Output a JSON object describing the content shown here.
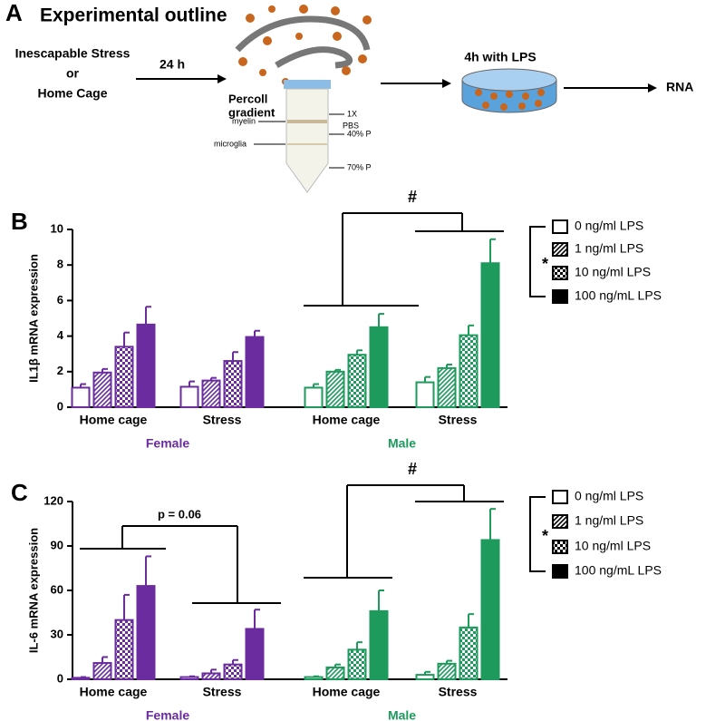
{
  "outline": {
    "panel_label": "A",
    "title": "Experimental outline",
    "condition_1": "Inescapable Stress",
    "or": "or",
    "condition_2": "Home Cage",
    "delay": "24 h",
    "percoll_1": "Percoll",
    "percoll_2": "gradient",
    "myelin": "myelin",
    "microglia": "microglia",
    "layer_1a": "1X",
    "layer_1b": "PBS",
    "layer_2": "40% P",
    "layer_3": "70% P",
    "incubation": "4h with LPS",
    "output": "RNA"
  },
  "chart_data": [
    {
      "type": "bar",
      "panel_label": "B",
      "ylabel": "IL1β mRNA expression",
      "ylim": [
        0,
        10
      ],
      "yticks": [
        0,
        2,
        4,
        6,
        8,
        10
      ],
      "categories": [
        "Home cage",
        "Stress",
        "Home cage",
        "Stress"
      ],
      "sexes": [
        "Female",
        "Male"
      ],
      "sex_colors": [
        "#6a2c9e",
        "#1d9a5c"
      ],
      "legend_color": "#000000",
      "series": [
        {
          "name": "0 ng/ml LPS",
          "pattern": "open",
          "values": [
            1.1,
            1.15,
            1.1,
            1.4
          ],
          "errors": [
            0.2,
            0.3,
            0.2,
            0.3
          ]
        },
        {
          "name": "1 ng/ml LPS",
          "pattern": "hatch",
          "values": [
            1.95,
            1.5,
            2.0,
            2.2
          ],
          "errors": [
            0.2,
            0.15,
            0.1,
            0.2
          ]
        },
        {
          "name": "10 ng/ml LPS",
          "pattern": "check",
          "values": [
            3.4,
            2.6,
            2.95,
            4.05
          ],
          "errors": [
            0.8,
            0.5,
            0.25,
            0.55
          ]
        },
        {
          "name": "100 ng/mL LPS",
          "pattern": "solid",
          "values": [
            4.65,
            3.95,
            4.5,
            8.1
          ],
          "errors": [
            1.0,
            0.35,
            0.75,
            1.35
          ]
        }
      ],
      "annotations": [
        "#",
        "*"
      ]
    },
    {
      "type": "bar",
      "panel_label": "C",
      "ylabel": "IL-6 mRNA expression",
      "ylim": [
        0,
        120
      ],
      "yticks": [
        0,
        30,
        60,
        90,
        120
      ],
      "categories": [
        "Home cage",
        "Stress",
        "Home cage",
        "Stress"
      ],
      "sexes": [
        "Female",
        "Male"
      ],
      "sex_colors": [
        "#6a2c9e",
        "#1d9a5c"
      ],
      "legend_color": "#000000",
      "series": [
        {
          "name": "0 ng/ml LPS",
          "pattern": "open",
          "values": [
            1,
            1.5,
            1.5,
            3
          ],
          "errors": [
            0.5,
            0.5,
            0.5,
            2
          ]
        },
        {
          "name": "1 ng/ml LPS",
          "pattern": "hatch",
          "values": [
            11,
            4,
            8,
            10.5
          ],
          "errors": [
            4,
            2.5,
            2,
            2
          ]
        },
        {
          "name": "10 ng/ml LPS",
          "pattern": "check",
          "values": [
            40,
            10,
            20,
            35
          ],
          "errors": [
            17,
            3,
            5,
            9
          ]
        },
        {
          "name": "100 ng/mL LPS",
          "pattern": "solid",
          "values": [
            63,
            34,
            46,
            94
          ],
          "errors": [
            20,
            13,
            14,
            21
          ]
        }
      ],
      "annotations": [
        "#",
        "*",
        "p = 0.06"
      ]
    }
  ]
}
